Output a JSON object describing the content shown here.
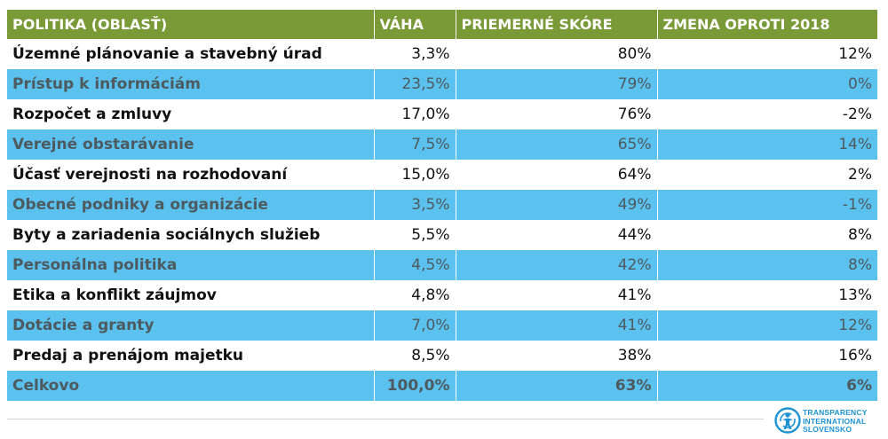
{
  "table": {
    "headers": [
      "POLITIKA (OBLASŤ)",
      "VÁHA",
      "PRIEMERNÉ SKÓRE",
      "ZMENA OPROTI 2018"
    ],
    "rows": [
      {
        "policy": "Územné plánovanie a stavebný úrad",
        "weight": "3,3%",
        "score": "80%",
        "change": "12%"
      },
      {
        "policy": "Prístup k informáciám",
        "weight": "23,5%",
        "score": "79%",
        "change": "0%"
      },
      {
        "policy": "Rozpočet a zmluvy",
        "weight": "17,0%",
        "score": "76%",
        "change": "-2%"
      },
      {
        "policy": "Verejné obstarávanie",
        "weight": "7,5%",
        "score": "65%",
        "change": "14%"
      },
      {
        "policy": "Účasť verejnosti na rozhodovaní",
        "weight": "15,0%",
        "score": "64%",
        "change": "2%"
      },
      {
        "policy": "Obecné podniky a organizácie",
        "weight": "3,5%",
        "score": "49%",
        "change": "-1%"
      },
      {
        "policy": "Byty a zariadenia sociálnych služieb",
        "weight": "5,5%",
        "score": "44%",
        "change": "8%"
      },
      {
        "policy": "Personálna politika",
        "weight": "4,5%",
        "score": "42%",
        "change": "8%"
      },
      {
        "policy": "Etika a konflikt záujmov",
        "weight": "4,8%",
        "score": "41%",
        "change": "13%"
      },
      {
        "policy": "Dotácie a granty",
        "weight": "7,0%",
        "score": "41%",
        "change": "12%"
      },
      {
        "policy": "Predaj a prenájom majetku",
        "weight": "8,5%",
        "score": "38%",
        "change": "16%"
      }
    ],
    "total": {
      "policy": "Celkovo",
      "weight": "100,0%",
      "score": "63%",
      "change": "6%"
    }
  },
  "logo": {
    "lines": [
      "TRANSPARENCY",
      "INTERNATIONAL",
      "SLOVENSKO"
    ]
  },
  "colors": {
    "header_bg": "#7a9a37",
    "stripe_bg": "#5bc1ee",
    "logo_blue": "#1e93d3"
  }
}
